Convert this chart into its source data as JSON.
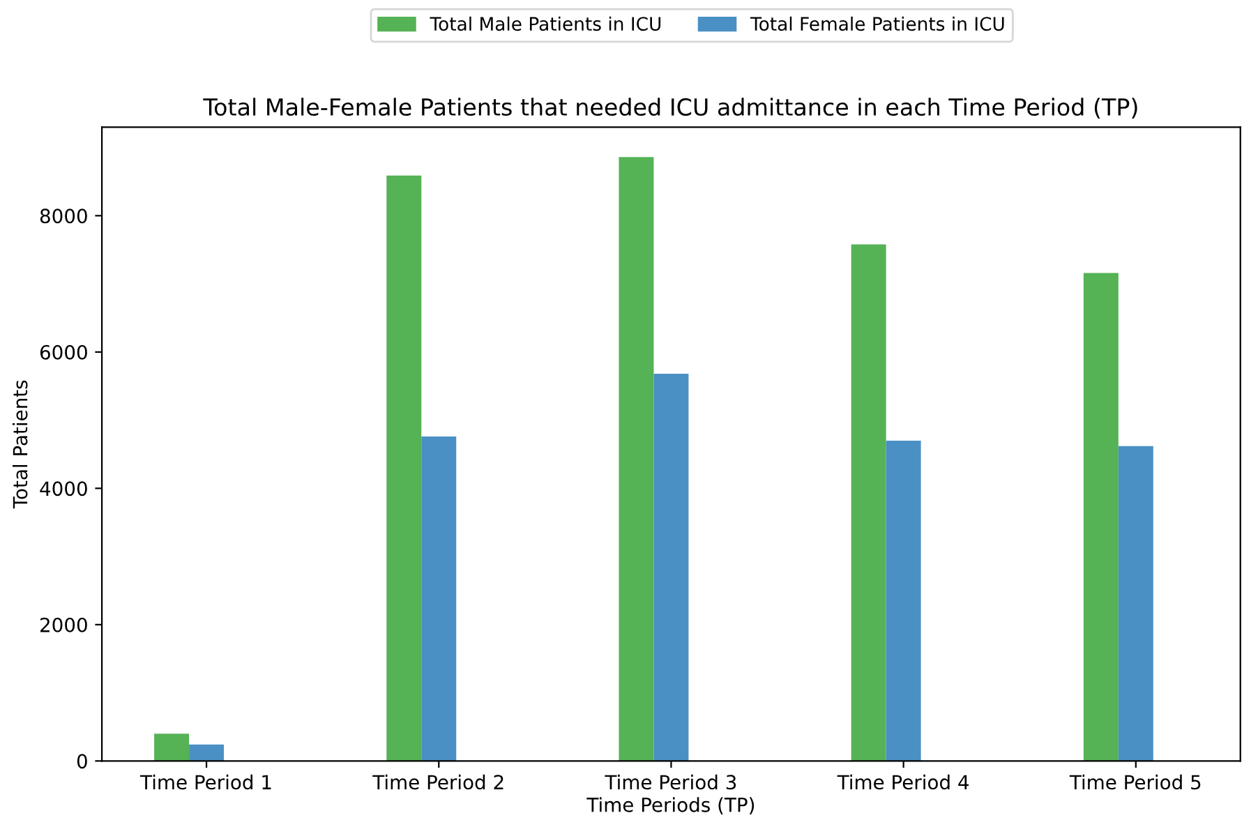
{
  "chart_data": {
    "type": "bar",
    "title": "Total Male-Female Patients that needed ICU admittance in each Time Period (TP)",
    "xlabel": "Time Periods (TP)",
    "ylabel": "Total Patients",
    "categories": [
      "Time Period 1",
      "Time Period 2",
      "Time Period 3",
      "Time Period 4",
      "Time Period 5"
    ],
    "series": [
      {
        "name": "Total Male Patients in ICU",
        "color": "#55b255",
        "values": [
          400,
          8590,
          8860,
          7580,
          7160
        ]
      },
      {
        "name": "Total Female Patients in ICU",
        "color": "#4a90c4",
        "values": [
          240,
          4760,
          5680,
          4700,
          4620
        ]
      }
    ],
    "ylim": [
      0,
      9300
    ],
    "yticks": [
      0,
      2000,
      4000,
      6000,
      8000
    ],
    "grid": false,
    "legend": "top"
  }
}
